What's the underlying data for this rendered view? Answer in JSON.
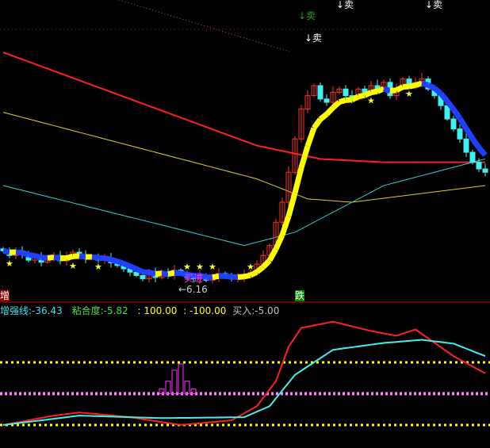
{
  "chart_data": {
    "type": "candlestick",
    "price_scale": "unlabeled",
    "closes": [
      6.62,
      6.55,
      6.6,
      6.58,
      6.48,
      6.52,
      6.45,
      6.5,
      6.55,
      6.47,
      6.52,
      6.6,
      6.55,
      6.5,
      6.53,
      6.48,
      6.5,
      6.44,
      6.4,
      6.35,
      6.3,
      6.25,
      6.2,
      6.28,
      6.22,
      6.3,
      6.25,
      6.33,
      6.27,
      6.22,
      6.2,
      6.24,
      6.18,
      6.22,
      6.28,
      6.24,
      6.2,
      6.22,
      6.25,
      6.3,
      6.42,
      6.55,
      6.7,
      7.05,
      7.35,
      7.8,
      8.3,
      8.75,
      8.95,
      9.1,
      8.9,
      8.85,
      9.0,
      9.05,
      8.95,
      8.9,
      9.05,
      9.0,
      9.1,
      9.05,
      9.15,
      8.95,
      9.05,
      9.2,
      9.1,
      9.15,
      9.2,
      9.05,
      8.95,
      8.8,
      8.6,
      8.45,
      8.3,
      8.1,
      7.95,
      7.85,
      7.8
    ],
    "moving_averages": [
      {
        "color": "#ff2020",
        "points": [
          {
            "i": 0,
            "v": 9.6
          },
          {
            "i": 40,
            "v": 8.2
          },
          {
            "i": 50,
            "v": 8.0
          },
          {
            "i": 60,
            "v": 7.95
          },
          {
            "i": 76,
            "v": 7.95
          }
        ]
      },
      {
        "color": "#e0d020",
        "points": [
          {
            "i": 0,
            "v": 8.7
          },
          {
            "i": 40,
            "v": 7.7
          },
          {
            "i": 48,
            "v": 7.4
          },
          {
            "i": 55,
            "v": 7.35
          },
          {
            "i": 76,
            "v": 7.6
          }
        ]
      },
      {
        "color": "#30d0d0",
        "points": [
          {
            "i": 0,
            "v": 7.6
          },
          {
            "i": 38,
            "v": 6.7
          },
          {
            "i": 46,
            "v": 6.9
          },
          {
            "i": 60,
            "v": 7.6
          },
          {
            "i": 76,
            "v": 8.0
          }
        ]
      }
    ],
    "stars": [
      1,
      11,
      15,
      29,
      31,
      33,
      39,
      58,
      64
    ],
    "sell_signals": [
      {
        "i": 47,
        "label": "↓卖",
        "color": "#20a020"
      },
      {
        "i": 48,
        "label": "↓卖",
        "color": "#ffffff"
      },
      {
        "i": 53,
        "label": "↓卖",
        "color": "#ffffff"
      },
      {
        "i": 67,
        "label": "↓卖",
        "color": "#ffffff"
      }
    ],
    "buy_signal": {
      "i": 28,
      "label": "买进"
    },
    "low_marker": "←6.16",
    "rise_badge": "增",
    "fall_badge": "跌",
    "indicator": {
      "levels": [
        100,
        0,
        -100
      ],
      "red_line": [
        {
          "i": 0,
          "v": -100
        },
        {
          "i": 8,
          "v": -70
        },
        {
          "i": 12,
          "v": -60
        },
        {
          "i": 20,
          "v": -75
        },
        {
          "i": 28,
          "v": -100
        },
        {
          "i": 36,
          "v": -85
        },
        {
          "i": 40,
          "v": -40
        },
        {
          "i": 43,
          "v": 40
        },
        {
          "i": 45,
          "v": 150
        },
        {
          "i": 47,
          "v": 210
        },
        {
          "i": 52,
          "v": 230
        },
        {
          "i": 58,
          "v": 200
        },
        {
          "i": 62,
          "v": 185
        },
        {
          "i": 65,
          "v": 205
        },
        {
          "i": 71,
          "v": 120
        },
        {
          "i": 76,
          "v": 65
        }
      ],
      "cyan_line": [
        {
          "i": 0,
          "v": -100
        },
        {
          "i": 12,
          "v": -70
        },
        {
          "i": 25,
          "v": -78
        },
        {
          "i": 38,
          "v": -75
        },
        {
          "i": 42,
          "v": -40
        },
        {
          "i": 46,
          "v": 60
        },
        {
          "i": 52,
          "v": 140
        },
        {
          "i": 60,
          "v": 162
        },
        {
          "i": 66,
          "v": 172
        },
        {
          "i": 71,
          "v": 160
        },
        {
          "i": 76,
          "v": 120
        }
      ],
      "histogram": [
        {
          "i": 25,
          "v": 15
        },
        {
          "i": 26,
          "v": 40
        },
        {
          "i": 27,
          "v": 75
        },
        {
          "i": 28,
          "v": 95
        },
        {
          "i": 29,
          "v": 40
        },
        {
          "i": 30,
          "v": 15
        }
      ]
    }
  },
  "header": {
    "enhance_label": "增强线",
    "enhance_value": ":-36.43",
    "adhesion_label": "粘合度",
    "adhesion_value": ":-5.82",
    "upper_value": ": 100.00",
    "lower_value": ": -100.00",
    "buy_label": "买入",
    "buy_value": ":-5.00"
  },
  "colors": {
    "up": "#ff3030",
    "down": "#40f0f0",
    "ribbon_up": "#ffff00",
    "ribbon_down": "#2040ff",
    "divider": "#c01010"
  }
}
